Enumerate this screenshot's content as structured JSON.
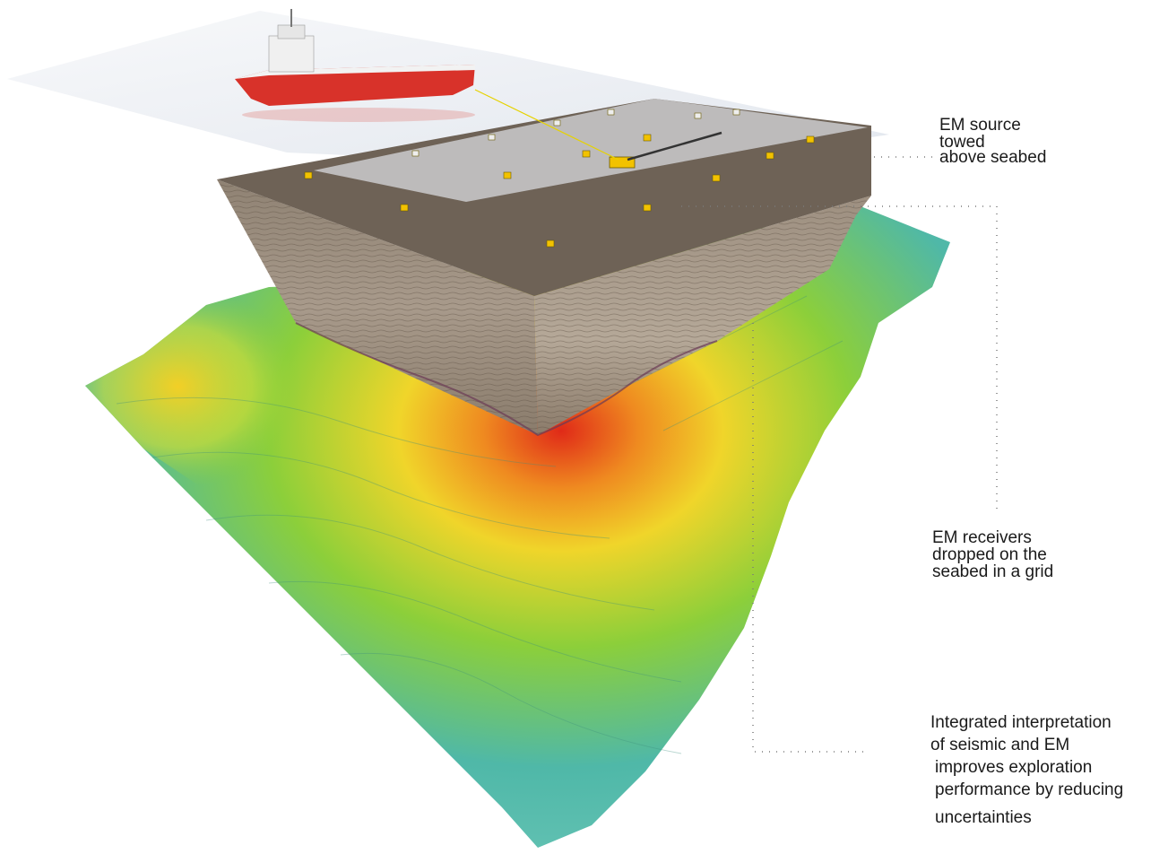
{
  "labels": {
    "em_source": [
      "EM source",
      "towed",
      "above seabed"
    ],
    "em_receivers": [
      "EM receivers",
      "dropped on the",
      "seabed in a grid"
    ],
    "integrated": [
      "Integrated interpretation",
      "of seismic and EM",
      "improves exploration",
      "performance by reducing",
      "uncertainties"
    ]
  },
  "colors": {
    "sea_surface": "#e8ecf2",
    "vessel_hull": "#d8322a",
    "seabed_top": "#6e6256",
    "seismic_side": "#a8998a",
    "terrain_low": "#4fb8a8",
    "terrain_mid": "#8ccf3a",
    "terrain_high": "#f0d52a",
    "terrain_peak": "#e02a18",
    "receiver": "#f2c200",
    "callout_line": "#7a7a7a"
  }
}
